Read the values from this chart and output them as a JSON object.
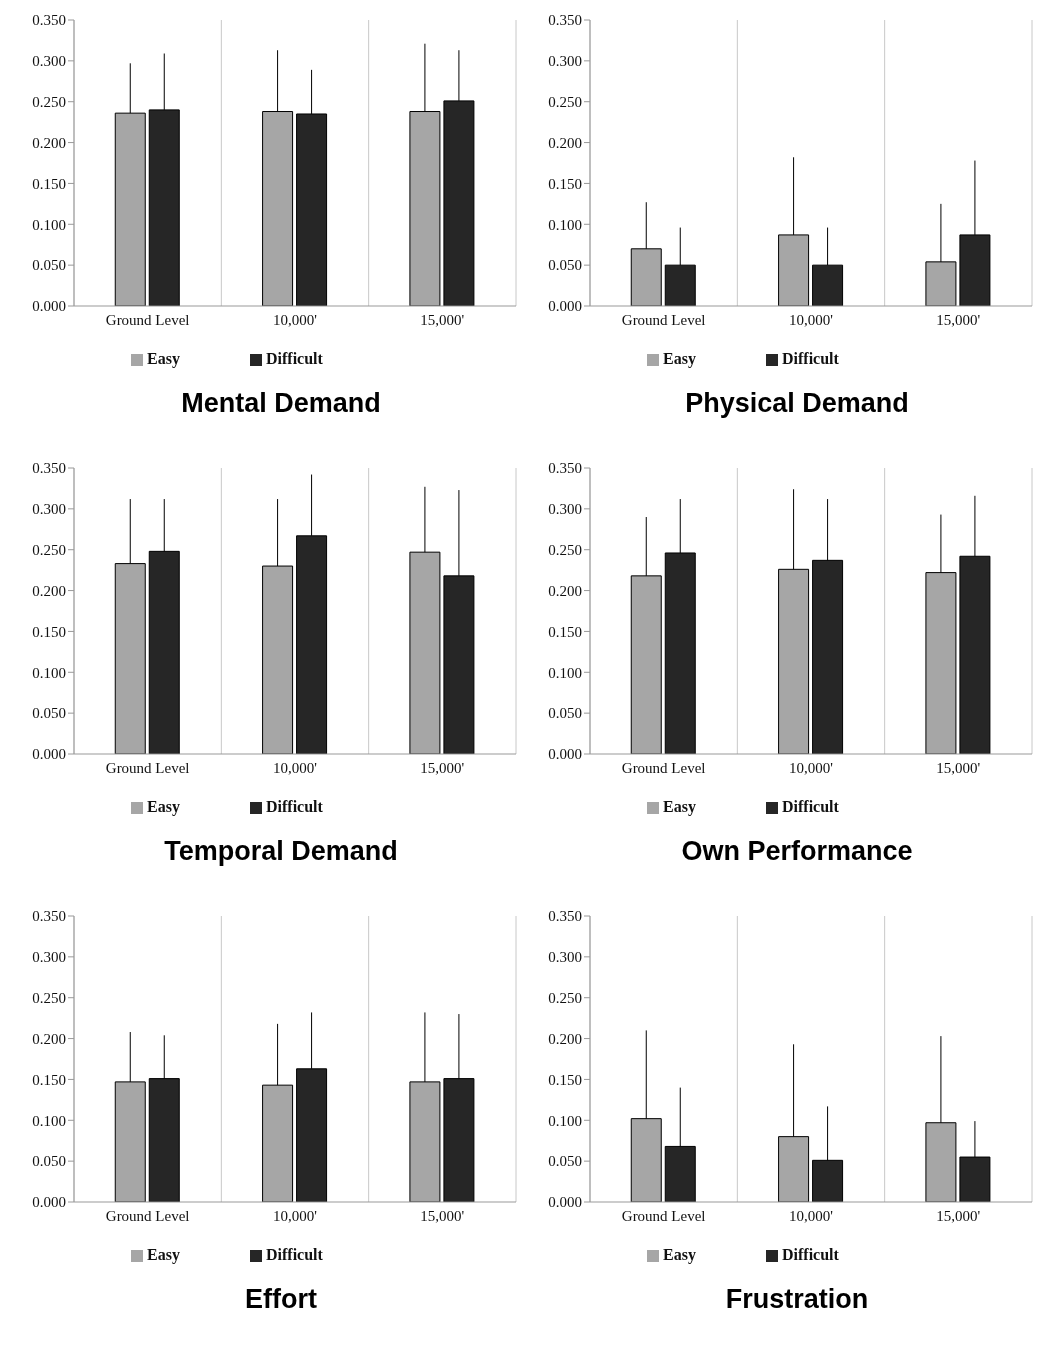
{
  "chart_data": [
    {
      "type": "bar",
      "title": "Mental Demand",
      "categories": [
        "Ground Level",
        "10,000'",
        "15,000'"
      ],
      "series": [
        {
          "name": "Easy",
          "color": "#a6a6a6",
          "values": [
            0.236,
            0.238,
            0.238
          ],
          "errors": [
            [
              0.236,
              0.297
            ],
            [
              0.238,
              0.313
            ],
            [
              0.238,
              0.321
            ]
          ]
        },
        {
          "name": "Difficult",
          "color": "#262626",
          "values": [
            0.24,
            0.235,
            0.251
          ],
          "errors": [
            [
              0.24,
              0.309
            ],
            [
              0.235,
              0.289
            ],
            [
              0.251,
              0.313
            ]
          ]
        }
      ],
      "ylim": [
        0,
        0.35
      ],
      "yticks": [
        {
          "value": 0,
          "label": "0.000"
        },
        {
          "value": 0.05,
          "label": "0.050"
        },
        {
          "value": 0.1,
          "label": "0.100"
        },
        {
          "value": 0.15,
          "label": "0.150"
        },
        {
          "value": 0.2,
          "label": "0.200"
        },
        {
          "value": 0.25,
          "label": "0.250"
        },
        {
          "value": 0.3,
          "label": "0.300"
        },
        {
          "value": 0.35,
          "label": "0.350"
        }
      ],
      "grid": "x",
      "legend": "bottom"
    },
    {
      "type": "bar",
      "title": "Physical Demand",
      "categories": [
        "Ground Level",
        "10,000'",
        "15,000'"
      ],
      "series": [
        {
          "name": "Easy",
          "color": "#a6a6a6",
          "values": [
            0.07,
            0.087,
            0.054
          ],
          "errors": [
            [
              0.07,
              0.127
            ],
            [
              0.087,
              0.182
            ],
            [
              0.054,
              0.125
            ]
          ]
        },
        {
          "name": "Difficult",
          "color": "#262626",
          "values": [
            0.05,
            0.05,
            0.087
          ],
          "errors": [
            [
              0.05,
              0.096
            ],
            [
              0.05,
              0.096
            ],
            [
              0.087,
              0.178
            ]
          ]
        }
      ],
      "ylim": [
        0,
        0.35
      ],
      "yticks": [
        {
          "value": 0,
          "label": "0.000"
        },
        {
          "value": 0.05,
          "label": "0.050"
        },
        {
          "value": 0.1,
          "label": "0.100"
        },
        {
          "value": 0.15,
          "label": "0.150"
        },
        {
          "value": 0.2,
          "label": "0.200"
        },
        {
          "value": 0.25,
          "label": "0.250"
        },
        {
          "value": 0.3,
          "label": "0.300"
        },
        {
          "value": 0.35,
          "label": "0.350"
        }
      ],
      "grid": "x",
      "legend": "bottom"
    },
    {
      "type": "bar",
      "title": "Temporal Demand",
      "categories": [
        "Ground Level",
        "10,000'",
        "15,000'"
      ],
      "series": [
        {
          "name": "Easy",
          "color": "#a6a6a6",
          "values": [
            0.233,
            0.23,
            0.247
          ],
          "errors": [
            [
              0.233,
              0.312
            ],
            [
              0.23,
              0.312
            ],
            [
              0.247,
              0.327
            ]
          ]
        },
        {
          "name": "Difficult",
          "color": "#262626",
          "values": [
            0.248,
            0.267,
            0.218
          ],
          "errors": [
            [
              0.248,
              0.312
            ],
            [
              0.267,
              0.342
            ],
            [
              0.218,
              0.323
            ]
          ]
        }
      ],
      "ylim": [
        0,
        0.35
      ],
      "yticks": [
        {
          "value": 0,
          "label": "0.000"
        },
        {
          "value": 0.05,
          "label": "0.050"
        },
        {
          "value": 0.1,
          "label": "0.100"
        },
        {
          "value": 0.15,
          "label": "0.150"
        },
        {
          "value": 0.2,
          "label": "0.200"
        },
        {
          "value": 0.25,
          "label": "0.250"
        },
        {
          "value": 0.3,
          "label": "0.300"
        },
        {
          "value": 0.35,
          "label": "0.350"
        }
      ],
      "grid": "x",
      "legend": "bottom"
    },
    {
      "type": "bar",
      "title": "Own Performance",
      "categories": [
        "Ground Level",
        "10,000'",
        "15,000'"
      ],
      "series": [
        {
          "name": "Easy",
          "color": "#a6a6a6",
          "values": [
            0.218,
            0.226,
            0.222
          ],
          "errors": [
            [
              0.218,
              0.29
            ],
            [
              0.226,
              0.324
            ],
            [
              0.222,
              0.293
            ]
          ]
        },
        {
          "name": "Difficult",
          "color": "#262626",
          "values": [
            0.246,
            0.237,
            0.242
          ],
          "errors": [
            [
              0.246,
              0.312
            ],
            [
              0.237,
              0.312
            ],
            [
              0.242,
              0.316
            ]
          ]
        }
      ],
      "ylim": [
        0,
        0.35
      ],
      "yticks": [
        {
          "value": 0,
          "label": "0.000"
        },
        {
          "value": 0.05,
          "label": "0.050"
        },
        {
          "value": 0.1,
          "label": "0.100"
        },
        {
          "value": 0.15,
          "label": "0.150"
        },
        {
          "value": 0.2,
          "label": "0.200"
        },
        {
          "value": 0.25,
          "label": "0.250"
        },
        {
          "value": 0.3,
          "label": "0.300"
        },
        {
          "value": 0.35,
          "label": "0.350"
        }
      ],
      "grid": "x",
      "legend": "bottom"
    },
    {
      "type": "bar",
      "title": "Effort",
      "categories": [
        "Ground Level",
        "10,000'",
        "15,000'"
      ],
      "series": [
        {
          "name": "Easy",
          "color": "#a6a6a6",
          "values": [
            0.147,
            0.143,
            0.147
          ],
          "errors": [
            [
              0.147,
              0.208
            ],
            [
              0.143,
              0.218
            ],
            [
              0.147,
              0.232
            ]
          ]
        },
        {
          "name": "Difficult",
          "color": "#262626",
          "values": [
            0.151,
            0.163,
            0.151
          ],
          "errors": [
            [
              0.151,
              0.204
            ],
            [
              0.163,
              0.232
            ],
            [
              0.151,
              0.23
            ]
          ]
        }
      ],
      "ylim": [
        0,
        0.35
      ],
      "yticks": [
        {
          "value": 0,
          "label": "0.000"
        },
        {
          "value": 0.05,
          "label": "0.050"
        },
        {
          "value": 0.1,
          "label": "0.100"
        },
        {
          "value": 0.15,
          "label": "0.150"
        },
        {
          "value": 0.2,
          "label": "0.200"
        },
        {
          "value": 0.25,
          "label": "0.250"
        },
        {
          "value": 0.3,
          "label": "0.300"
        },
        {
          "value": 0.35,
          "label": "0.350"
        }
      ],
      "grid": "x",
      "legend": "bottom"
    },
    {
      "type": "bar",
      "title": "Frustration",
      "categories": [
        "Ground Level",
        "10,000'",
        "15,000'"
      ],
      "series": [
        {
          "name": "Easy",
          "color": "#a6a6a6",
          "values": [
            0.102,
            0.08,
            0.097
          ],
          "errors": [
            [
              0.102,
              0.21
            ],
            [
              0.08,
              0.193
            ],
            [
              0.097,
              0.203
            ]
          ]
        },
        {
          "name": "Difficult",
          "color": "#262626",
          "values": [
            0.068,
            0.051,
            0.055
          ],
          "errors": [
            [
              0.068,
              0.14
            ],
            [
              0.051,
              0.117
            ],
            [
              0.055,
              0.099
            ]
          ]
        }
      ],
      "ylim": [
        0,
        0.35
      ],
      "yticks": [
        {
          "value": 0,
          "label": "0.000"
        },
        {
          "value": 0.05,
          "label": "0.050"
        },
        {
          "value": 0.1,
          "label": "0.100"
        },
        {
          "value": 0.15,
          "label": "0.150"
        },
        {
          "value": 0.2,
          "label": "0.200"
        },
        {
          "value": 0.25,
          "label": "0.250"
        },
        {
          "value": 0.3,
          "label": "0.300"
        },
        {
          "value": 0.35,
          "label": "0.350"
        }
      ],
      "grid": "x",
      "legend": "bottom"
    }
  ]
}
